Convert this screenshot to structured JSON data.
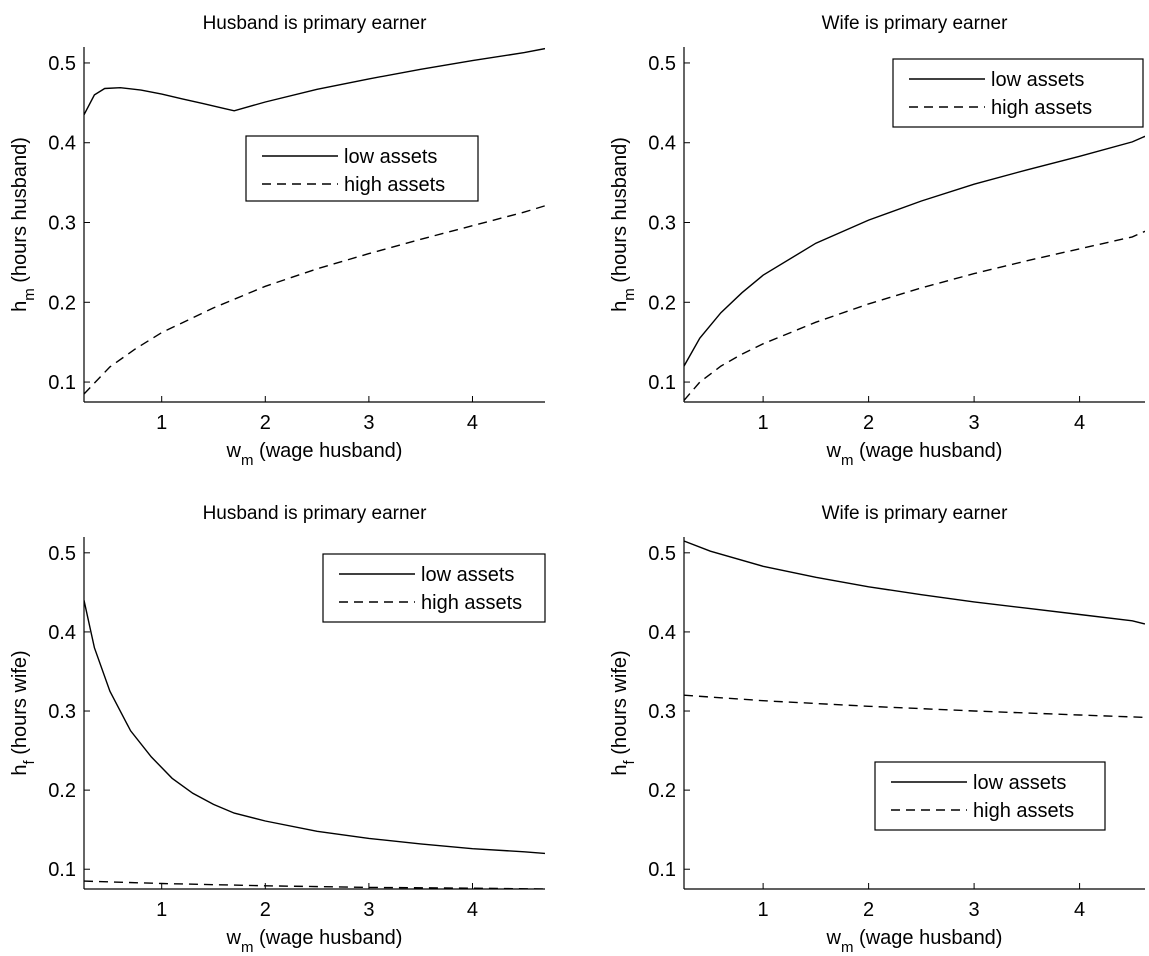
{
  "chart_data": [
    {
      "type": "line",
      "title": "Husband is primary earner",
      "xlabel_main": "w",
      "xlabel_sub": "m",
      "xlabel_rest": " (wage husband)",
      "ylabel_main": "h",
      "ylabel_sub": "m",
      "ylabel_rest": " (hours husband)",
      "xlim": [
        0.25,
        4.7
      ],
      "ylim": [
        0.075,
        0.52
      ],
      "xticks": [
        1,
        2,
        3,
        4
      ],
      "yticks": [
        0.1,
        0.2,
        0.3,
        0.4,
        0.5
      ],
      "legend": "inside-center",
      "series": [
        {
          "name": "low assets",
          "style": "solid",
          "x": [
            0.25,
            0.35,
            0.45,
            0.6,
            0.8,
            1.0,
            1.2,
            1.4,
            1.6,
            1.7,
            2.0,
            2.5,
            3.0,
            3.5,
            4.0,
            4.5,
            4.7
          ],
          "y": [
            0.435,
            0.46,
            0.468,
            0.469,
            0.466,
            0.461,
            0.455,
            0.449,
            0.443,
            0.44,
            0.451,
            0.467,
            0.48,
            0.492,
            0.503,
            0.513,
            0.518
          ]
        },
        {
          "name": "high assets",
          "style": "dashed",
          "x": [
            0.25,
            0.5,
            0.75,
            1.0,
            1.5,
            2.0,
            2.5,
            3.0,
            3.5,
            4.0,
            4.5,
            4.7
          ],
          "y": [
            0.085,
            0.119,
            0.142,
            0.162,
            0.193,
            0.22,
            0.242,
            0.261,
            0.279,
            0.296,
            0.313,
            0.321
          ]
        }
      ]
    },
    {
      "type": "line",
      "title": "Wife is primary earner",
      "xlabel_main": "w",
      "xlabel_sub": "m",
      "xlabel_rest": " (wage husband)",
      "ylabel_main": "h",
      "ylabel_sub": "m",
      "ylabel_rest": " (hours husband)",
      "xlim": [
        0.25,
        4.62
      ],
      "ylim": [
        0.075,
        0.52
      ],
      "xticks": [
        1,
        2,
        3,
        4
      ],
      "yticks": [
        0.1,
        0.2,
        0.3,
        0.4,
        0.5
      ],
      "legend": "top-right",
      "series": [
        {
          "name": "low assets",
          "style": "solid",
          "x": [
            0.25,
            0.4,
            0.6,
            0.8,
            1.0,
            1.5,
            2.0,
            2.5,
            3.0,
            3.5,
            4.0,
            4.5,
            4.62
          ],
          "y": [
            0.12,
            0.155,
            0.187,
            0.212,
            0.234,
            0.274,
            0.303,
            0.327,
            0.348,
            0.366,
            0.383,
            0.401,
            0.408
          ]
        },
        {
          "name": "high assets",
          "style": "dashed",
          "x": [
            0.25,
            0.4,
            0.6,
            0.8,
            1.0,
            1.5,
            2.0,
            2.5,
            3.0,
            3.5,
            4.0,
            4.5,
            4.62
          ],
          "y": [
            0.077,
            0.1,
            0.12,
            0.135,
            0.148,
            0.175,
            0.198,
            0.218,
            0.236,
            0.252,
            0.267,
            0.282,
            0.289
          ]
        }
      ]
    },
    {
      "type": "line",
      "title": "Husband is primary earner",
      "xlabel_main": "w",
      "xlabel_sub": "m",
      "xlabel_rest": " (wage husband)",
      "ylabel_main": "h",
      "ylabel_sub": "f",
      "ylabel_rest": " (hours wife)",
      "xlim": [
        0.25,
        4.7
      ],
      "ylim": [
        0.075,
        0.52
      ],
      "xticks": [
        1,
        2,
        3,
        4
      ],
      "yticks": [
        0.1,
        0.2,
        0.3,
        0.4,
        0.5
      ],
      "legend": "top-right",
      "series": [
        {
          "name": "low assets",
          "style": "solid",
          "x": [
            0.25,
            0.35,
            0.5,
            0.7,
            0.9,
            1.1,
            1.3,
            1.5,
            1.7,
            2.0,
            2.5,
            3.0,
            3.5,
            4.0,
            4.5,
            4.7
          ],
          "y": [
            0.44,
            0.38,
            0.325,
            0.275,
            0.242,
            0.215,
            0.196,
            0.182,
            0.171,
            0.161,
            0.148,
            0.139,
            0.132,
            0.126,
            0.122,
            0.12
          ]
        },
        {
          "name": "high assets",
          "style": "dashed",
          "x": [
            0.25,
            1.0,
            2.0,
            3.0,
            4.0,
            4.7
          ],
          "y": [
            0.085,
            0.082,
            0.079,
            0.077,
            0.076,
            0.075
          ]
        }
      ]
    },
    {
      "type": "line",
      "title": "Wife is primary earner",
      "xlabel_main": "w",
      "xlabel_sub": "m",
      "xlabel_rest": " (wage husband)",
      "ylabel_main": "h",
      "ylabel_sub": "f",
      "ylabel_rest": " (hours wife)",
      "xlim": [
        0.25,
        4.62
      ],
      "ylim": [
        0.075,
        0.52
      ],
      "xticks": [
        1,
        2,
        3,
        4
      ],
      "yticks": [
        0.1,
        0.2,
        0.3,
        0.4,
        0.5
      ],
      "legend": "bottom-center",
      "series": [
        {
          "name": "low assets",
          "style": "solid",
          "x": [
            0.25,
            0.5,
            1.0,
            1.5,
            2.0,
            2.5,
            3.0,
            3.5,
            4.0,
            4.5,
            4.62
          ],
          "y": [
            0.515,
            0.502,
            0.483,
            0.469,
            0.457,
            0.447,
            0.438,
            0.43,
            0.422,
            0.414,
            0.41
          ]
        },
        {
          "name": "high assets",
          "style": "dashed",
          "x": [
            0.25,
            1.0,
            2.0,
            3.0,
            4.0,
            4.62
          ],
          "y": [
            0.32,
            0.313,
            0.306,
            0.3,
            0.295,
            0.292
          ]
        }
      ]
    }
  ]
}
